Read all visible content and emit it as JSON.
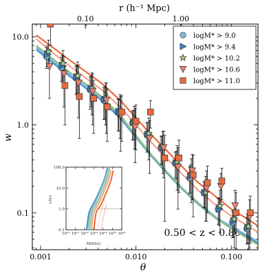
{
  "chart_data": {
    "type": "scatter",
    "xlabel": "θ",
    "ylabel": "w",
    "top_axis_label": "r (h⁻¹ Mpc)",
    "top_ticks": [
      {
        "value": 0.1,
        "label": "0.10",
        "theta": 0.00295
      },
      {
        "value": 1.0,
        "label": "1.00",
        "theta": 0.0295
      }
    ],
    "x_scale": "log",
    "y_scale": "log",
    "xlim": [
      0.00082,
      0.19
    ],
    "ylim": [
      0.038,
      14.0
    ],
    "xticks": [
      {
        "v": 0.001,
        "label": "0.001"
      },
      {
        "v": 0.01,
        "label": "0.010"
      },
      {
        "v": 0.1,
        "label": "0.100"
      }
    ],
    "yticks": [
      {
        "v": 0.1,
        "label": "0.1"
      },
      {
        "v": 1.0,
        "label": "1.0"
      },
      {
        "v": 10.0,
        "label": "10.0"
      }
    ],
    "redshift_label": "0.50 < z < 0.80",
    "legend_position": "top-right",
    "series": [
      {
        "name": "logM* > 9.0",
        "marker": "circle",
        "color": "#89b9d9",
        "x": [
          0.00115,
          0.00165,
          0.00235,
          0.0033,
          0.0046,
          0.0065,
          0.0092,
          0.013,
          0.0183,
          0.0258,
          0.0364,
          0.0515,
          0.0727,
          0.1027,
          0.145
        ],
        "y": [
          6.0,
          4.5,
          3.4,
          2.5,
          1.9,
          1.4,
          1.05,
          0.77,
          0.55,
          0.37,
          0.25,
          0.17,
          0.11,
          0.078,
          0.066
        ],
        "err": [
          1.6,
          1.4,
          1.2,
          1.0,
          0.75,
          0.55,
          0.38,
          0.28,
          0.19,
          0.12,
          0.085,
          0.055,
          0.036,
          0.026,
          0.022
        ]
      },
      {
        "name": "logM* > 9.4",
        "marker": "triangle-right",
        "color": "#3a86c4",
        "x": [
          0.00118,
          0.00169,
          0.0024,
          0.00338,
          0.0047,
          0.0066,
          0.0094,
          0.0133,
          0.0187,
          0.0264,
          0.0372,
          0.0526,
          0.0744,
          0.105,
          0.148
        ],
        "y": [
          6.3,
          4.7,
          3.5,
          2.6,
          1.95,
          1.42,
          1.07,
          0.78,
          0.55,
          0.37,
          0.26,
          0.17,
          0.11,
          0.08,
          0.068
        ],
        "err": [
          1.7,
          1.5,
          1.2,
          1.0,
          0.78,
          0.57,
          0.39,
          0.29,
          0.2,
          0.13,
          0.09,
          0.057,
          0.038,
          0.027,
          0.023
        ]
      },
      {
        "name": "logM* > 10.2",
        "marker": "star",
        "color": "#a8d08d",
        "x": [
          0.00121,
          0.00172,
          0.00245,
          0.00345,
          0.0048,
          0.0068,
          0.0096,
          0.0136,
          0.0191,
          0.027,
          0.038,
          0.0537,
          0.076,
          0.107,
          0.151
        ],
        "y": [
          6.8,
          5.0,
          3.6,
          2.6,
          2.0,
          1.45,
          1.08,
          0.8,
          0.56,
          0.38,
          0.27,
          0.17,
          0.12,
          0.085,
          0.07
        ],
        "err": [
          2.4,
          2.0,
          1.6,
          1.3,
          1.0,
          0.75,
          0.55,
          0.4,
          0.28,
          0.2,
          0.14,
          0.09,
          0.06,
          0.045,
          0.035
        ]
      },
      {
        "name": "logM* > 10.6",
        "marker": "triangle-down",
        "color": "#e8826e",
        "x": [
          0.00124,
          0.00176,
          0.0025,
          0.00352,
          0.0049,
          0.0069,
          0.0098,
          0.0139,
          0.0195,
          0.0276,
          0.0389,
          0.0549,
          0.0776,
          0.1095,
          0.155
        ],
        "y": [
          4.6,
          3.8,
          3.0,
          2.4,
          1.9,
          1.3,
          0.95,
          0.7,
          0.55,
          0.33,
          0.3,
          0.19,
          0.2,
          0.12,
          0.09
        ],
        "err": [
          2.6,
          2.2,
          1.8,
          1.4,
          1.1,
          0.8,
          0.58,
          0.42,
          0.3,
          0.22,
          0.16,
          0.11,
          0.08,
          0.06,
          0.05
        ]
      },
      {
        "name": "logM* > 11.0",
        "marker": "square",
        "color": "#e86a3e",
        "x": [
          0.00127,
          0.0018,
          0.00255,
          0.0036,
          0.005,
          0.0071,
          0.01,
          0.0142,
          0.02,
          0.0282,
          0.0398,
          0.0562,
          0.0794,
          0.112,
          0.158
        ],
        "y": [
          14.0,
          2.8,
          2.1,
          2.0,
          1.6,
          1.4,
          1.1,
          1.4,
          0.42,
          0.42,
          0.27,
          0.22,
          0.23,
          0.1,
          0.1
        ],
        "err": [
          6.0,
          1.8,
          1.4,
          1.2,
          0.95,
          0.75,
          0.58,
          0.48,
          0.34,
          0.25,
          0.18,
          0.12,
          0.09,
          0.07,
          0.055
        ]
      }
    ],
    "model_curves": [
      {
        "color": "#4a90c8",
        "x": [
          0.0009,
          0.0013,
          0.002,
          0.003,
          0.0045,
          0.007,
          0.01,
          0.014,
          0.02,
          0.03,
          0.045,
          0.07,
          0.1,
          0.14,
          0.19
        ],
        "y": [
          7.2,
          5.2,
          3.6,
          2.6,
          1.85,
          1.15,
          0.72,
          0.46,
          0.3,
          0.19,
          0.125,
          0.085,
          0.068,
          0.055,
          0.045
        ]
      },
      {
        "color": "#7fb6dc",
        "x": [
          0.0009,
          0.0013,
          0.002,
          0.003,
          0.0045,
          0.007,
          0.01,
          0.014,
          0.02,
          0.03,
          0.045,
          0.07,
          0.1,
          0.14,
          0.19
        ],
        "y": [
          7.6,
          5.5,
          3.8,
          2.75,
          1.95,
          1.2,
          0.74,
          0.47,
          0.31,
          0.195,
          0.13,
          0.088,
          0.07,
          0.057,
          0.047
        ]
      },
      {
        "color": "#92c47c",
        "x": [
          0.0009,
          0.0013,
          0.002,
          0.003,
          0.0045,
          0.007,
          0.01,
          0.014,
          0.02,
          0.03,
          0.045,
          0.07,
          0.1,
          0.14,
          0.19
        ],
        "y": [
          8.0,
          5.8,
          4.0,
          2.9,
          2.05,
          1.25,
          0.76,
          0.48,
          0.31,
          0.195,
          0.128,
          0.085,
          0.066,
          0.053,
          0.043
        ]
      },
      {
        "color": "#f0a487",
        "x": [
          0.0009,
          0.0013,
          0.002,
          0.003,
          0.0045,
          0.007,
          0.01,
          0.014,
          0.02,
          0.03,
          0.045,
          0.07,
          0.1,
          0.14,
          0.19
        ],
        "y": [
          9.5,
          6.8,
          4.7,
          3.4,
          2.45,
          1.55,
          1.0,
          0.66,
          0.44,
          0.28,
          0.18,
          0.12,
          0.092,
          0.074,
          0.06
        ]
      },
      {
        "color": "#e86a3e",
        "x": [
          0.0009,
          0.0013,
          0.002,
          0.003,
          0.0045,
          0.007,
          0.01,
          0.014,
          0.02,
          0.03,
          0.045,
          0.07,
          0.1,
          0.14,
          0.19
        ],
        "y": [
          10.5,
          7.8,
          5.5,
          4.0,
          2.9,
          1.85,
          1.2,
          0.8,
          0.54,
          0.34,
          0.22,
          0.15,
          0.11,
          0.088,
          0.071
        ]
      }
    ],
    "inset": {
      "xlabel": "M(M⊙)",
      "ylabel": "<N>",
      "x_scale": "log",
      "y_scale": "log",
      "xlim": [
        10000000000.0,
        1e+16
      ],
      "ylim": [
        0.1,
        100
      ],
      "xticks": [
        {
          "v": 10000000000.0,
          "label": "10¹⁰"
        },
        {
          "v": 100000000000.0,
          "label": "10¹¹"
        },
        {
          "v": 1000000000000.0,
          "label": "10¹²"
        },
        {
          "v": 10000000000000.0,
          "label": "10¹³"
        },
        {
          "v": 100000000000000.0,
          "label": "10¹⁴"
        },
        {
          "v": 1000000000000000.0,
          "label": "10¹⁵"
        },
        {
          "v": 1e+16,
          "label": "10¹⁶"
        }
      ],
      "yticks": [
        {
          "v": 0.1,
          "label": "0.1"
        },
        {
          "v": 1,
          "label": "1.0"
        },
        {
          "v": 10,
          "label": "10.0"
        },
        {
          "v": 100,
          "label": "100.0"
        }
      ],
      "curves": [
        {
          "color": "#4a90c8",
          "x": [
            1600000000000.0,
            2000000000000.0,
            2500000000000.0,
            3200000000000.0,
            4500000000000.0,
            7000000000000.0,
            12000000000000.0,
            25000000000000.0,
            60000000000000.0,
            150000000000000.0,
            300000000000000.0
          ],
          "y": [
            0.1,
            0.22,
            0.45,
            0.75,
            1.05,
            1.5,
            2.3,
            4.5,
            11,
            30,
            100
          ]
        },
        {
          "color": "#7fb6dc",
          "x": [
            2200000000000.0,
            2700000000000.0,
            3400000000000.0,
            4300000000000.0,
            6000000000000.0,
            9000000000000.0,
            15000000000000.0,
            30000000000000.0,
            70000000000000.0,
            170000000000000.0,
            350000000000000.0
          ],
          "y": [
            0.1,
            0.22,
            0.45,
            0.75,
            1.05,
            1.45,
            2.2,
            4.3,
            10.5,
            29,
            100
          ]
        },
        {
          "color": "#92c47c",
          "x": [
            3500000000000.0,
            4200000000000.0,
            5200000000000.0,
            6500000000000.0,
            9000000000000.0,
            14000000000000.0,
            24000000000000.0,
            48000000000000.0,
            110000000000000.0,
            260000000000000.0,
            500000000000000.0
          ],
          "y": [
            0.1,
            0.22,
            0.45,
            0.75,
            1.03,
            1.4,
            2.1,
            4.2,
            10,
            28,
            90
          ]
        },
        {
          "color": "#f0a487",
          "x": [
            5500000000000.0,
            6500000000000.0,
            8000000000000.0,
            10000000000000.0,
            14000000000000.0,
            22000000000000.0,
            38000000000000.0,
            75000000000000.0,
            170000000000000.0,
            400000000000000.0,
            700000000000000.0
          ],
          "y": [
            0.1,
            0.22,
            0.45,
            0.72,
            0.98,
            1.3,
            2.0,
            4.0,
            9.5,
            27,
            70
          ]
        },
        {
          "color": "#e86a3e",
          "x": [
            10000000000000.0,
            12000000000000.0,
            14500000000000.0,
            18000000000000.0,
            25000000000000.0,
            40000000000000.0,
            65000000000000.0,
            130000000000000.0,
            300000000000000.0,
            700000000000000.0,
            1200000000000000.0
          ],
          "y": [
            0.1,
            0.22,
            0.45,
            0.72,
            0.95,
            1.2,
            1.8,
            3.6,
            8.5,
            24,
            70
          ]
        }
      ],
      "dashed_curves": [
        {
          "color": "#f0a487",
          "x": [
            25000000000000.0,
            40000000000000.0,
            60000000000000.0,
            100000000000000.0,
            180000000000000.0
          ],
          "y": [
            0.1,
            0.3,
            0.7,
            1.6,
            3.5
          ]
        },
        {
          "color": "#e86a3e",
          "x": [
            60000000000000.0,
            90000000000000.0,
            140000000000000.0,
            220000000000000.0
          ],
          "y": [
            0.1,
            0.3,
            0.7,
            1.6
          ]
        }
      ],
      "dotted_level": 1.0
    }
  }
}
